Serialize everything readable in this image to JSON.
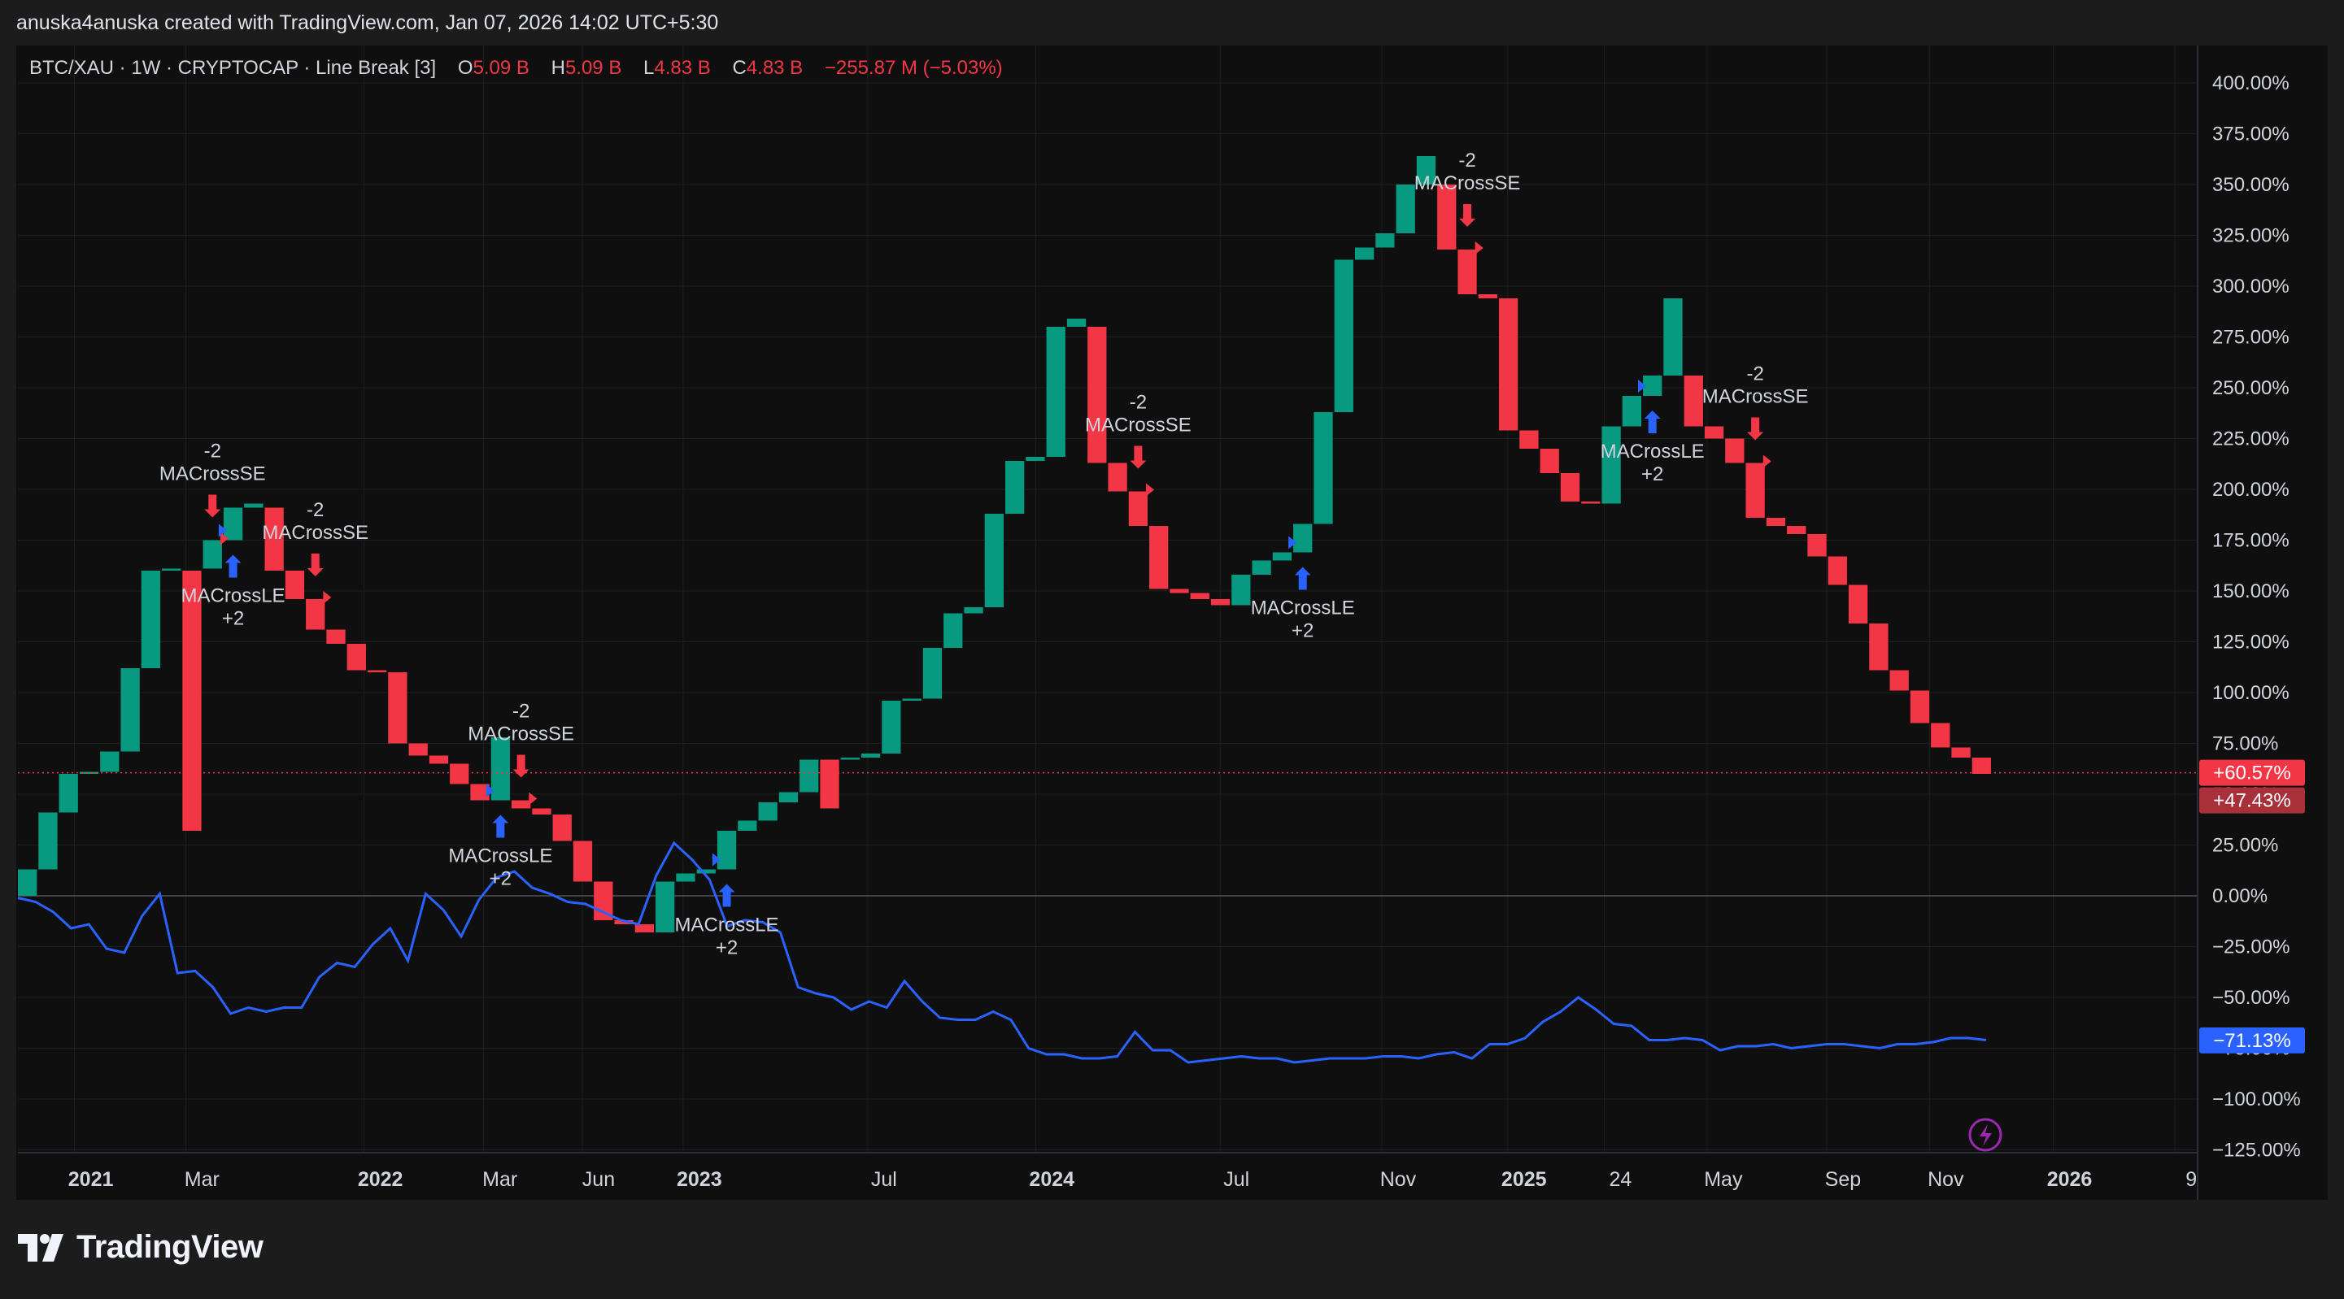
{
  "credit": "anuska4anuska created with TradingView.com, Jan 07, 2026 14:02 UTC+5:30",
  "legend": {
    "symbol": "BTC/XAU · 1W · CRYPTOCAP · Line Break [3]",
    "open_label": "O",
    "open": "5.09 B",
    "high_label": "H",
    "high": "5.09 B",
    "low_label": "L",
    "low": "4.83 B",
    "close_label": "C",
    "close": "4.83 B",
    "change": "−255.87 M (−5.03%)"
  },
  "brand": "TradingView",
  "colors": {
    "up": "#089981",
    "down": "#f23645",
    "compare_line": "#2962ff",
    "signal_long": "#2962ff",
    "signal_short": "#f23645",
    "background": "#0f0f0f",
    "grid": "#1e1e1e",
    "text": "#d1d4dc"
  },
  "price_badges": [
    {
      "text": "+60.57%",
      "value": 60.57,
      "color": "#f23645"
    },
    {
      "text": "+47.43%",
      "value": 47.43,
      "color": "#a8303b"
    },
    {
      "text": "−71.13%",
      "value": -71.13,
      "color": "#2962ff"
    }
  ],
  "chart_data": {
    "type": "line_break",
    "y_unit": "%",
    "ylim": [
      -125,
      400
    ],
    "y_ticks": [
      "400.00%",
      "375.00%",
      "350.00%",
      "325.00%",
      "300.00%",
      "275.00%",
      "250.00%",
      "225.00%",
      "200.00%",
      "175.00%",
      "150.00%",
      "125.00%",
      "100.00%",
      "75.00%",
      "50.00%",
      "25.00%",
      "0.00%",
      "−25.00%",
      "−50.00%",
      "−75.00%",
      "−100.00%",
      "−125.00%"
    ],
    "y_tick_values": [
      400,
      375,
      350,
      325,
      300,
      275,
      250,
      225,
      200,
      175,
      150,
      125,
      100,
      75,
      50,
      25,
      0,
      -25,
      -50,
      -75,
      -100,
      -125
    ],
    "x_ticks": [
      {
        "label": "2021",
        "bold": true,
        "t": 0.02
      },
      {
        "label": "Mar",
        "bold": false,
        "t": 0.073
      },
      {
        "label": "2022",
        "bold": true,
        "t": 0.158
      },
      {
        "label": "Mar",
        "bold": false,
        "t": 0.215
      },
      {
        "label": "Jun",
        "bold": false,
        "t": 0.262
      },
      {
        "label": "2023",
        "bold": true,
        "t": 0.31
      },
      {
        "label": "Jul",
        "bold": false,
        "t": 0.398
      },
      {
        "label": "2024",
        "bold": true,
        "t": 0.478
      },
      {
        "label": "Jul",
        "bold": false,
        "t": 0.566
      },
      {
        "label": "Nov",
        "bold": false,
        "t": 0.643
      },
      {
        "label": "2025",
        "bold": true,
        "t": 0.703
      },
      {
        "label": "24",
        "bold": false,
        "t": 0.749
      },
      {
        "label": "May",
        "bold": false,
        "t": 0.798
      },
      {
        "label": "Sep",
        "bold": false,
        "t": 0.855
      },
      {
        "label": "Nov",
        "bold": false,
        "t": 0.904
      },
      {
        "label": "2026",
        "bold": true,
        "t": 0.963
      },
      {
        "label": "9",
        "bold": false,
        "t": 1.021
      }
    ],
    "bricks": [
      {
        "o": 0,
        "c": 13,
        "up": true
      },
      {
        "o": 13,
        "c": 41,
        "up": true
      },
      {
        "o": 41,
        "c": 60,
        "up": true
      },
      {
        "o": 60,
        "c": 61,
        "up": true
      },
      {
        "o": 61,
        "c": 71,
        "up": true
      },
      {
        "o": 71,
        "c": 112,
        "up": true
      },
      {
        "o": 112,
        "c": 160,
        "up": true
      },
      {
        "o": 160,
        "c": 161,
        "up": true
      },
      {
        "o": 160,
        "c": 32,
        "up": false
      },
      {
        "o": 161,
        "c": 175,
        "up": true
      },
      {
        "o": 175,
        "c": 191,
        "up": true
      },
      {
        "o": 191,
        "c": 193,
        "up": true
      },
      {
        "o": 191,
        "c": 160,
        "up": false
      },
      {
        "o": 160,
        "c": 146,
        "up": false
      },
      {
        "o": 146,
        "c": 131,
        "up": false
      },
      {
        "o": 131,
        "c": 124,
        "up": false
      },
      {
        "o": 124,
        "c": 111,
        "up": false
      },
      {
        "o": 111,
        "c": 110,
        "up": false
      },
      {
        "o": 110,
        "c": 75,
        "up": false
      },
      {
        "o": 75,
        "c": 69,
        "up": false
      },
      {
        "o": 69,
        "c": 65,
        "up": false
      },
      {
        "o": 65,
        "c": 55,
        "up": false
      },
      {
        "o": 55,
        "c": 47,
        "up": false
      },
      {
        "o": 47,
        "c": 78,
        "up": true
      },
      {
        "o": 47,
        "c": 43,
        "up": false
      },
      {
        "o": 43,
        "c": 40,
        "up": false
      },
      {
        "o": 40,
        "c": 27,
        "up": false
      },
      {
        "o": 27,
        "c": 7,
        "up": false
      },
      {
        "o": 7,
        "c": -12,
        "up": false
      },
      {
        "o": -12,
        "c": -14,
        "up": false
      },
      {
        "o": -14,
        "c": -18,
        "up": false
      },
      {
        "o": -18,
        "c": 7,
        "up": true
      },
      {
        "o": 7,
        "c": 11,
        "up": true
      },
      {
        "o": 11,
        "c": 13,
        "up": true
      },
      {
        "o": 13,
        "c": 32,
        "up": true
      },
      {
        "o": 32,
        "c": 37,
        "up": true
      },
      {
        "o": 37,
        "c": 46,
        "up": true
      },
      {
        "o": 46,
        "c": 51,
        "up": true
      },
      {
        "o": 51,
        "c": 67,
        "up": true
      },
      {
        "o": 67,
        "c": 43,
        "up": false
      },
      {
        "o": 67,
        "c": 68,
        "up": true
      },
      {
        "o": 68,
        "c": 70,
        "up": true
      },
      {
        "o": 70,
        "c": 96,
        "up": true
      },
      {
        "o": 96,
        "c": 97,
        "up": true
      },
      {
        "o": 97,
        "c": 122,
        "up": true
      },
      {
        "o": 122,
        "c": 139,
        "up": true
      },
      {
        "o": 139,
        "c": 142,
        "up": true
      },
      {
        "o": 142,
        "c": 188,
        "up": true
      },
      {
        "o": 188,
        "c": 214,
        "up": true
      },
      {
        "o": 214,
        "c": 216,
        "up": true
      },
      {
        "o": 216,
        "c": 280,
        "up": true
      },
      {
        "o": 280,
        "c": 284,
        "up": true
      },
      {
        "o": 280,
        "c": 213,
        "up": false
      },
      {
        "o": 213,
        "c": 199,
        "up": false
      },
      {
        "o": 199,
        "c": 182,
        "up": false
      },
      {
        "o": 182,
        "c": 151,
        "up": false
      },
      {
        "o": 151,
        "c": 149,
        "up": false
      },
      {
        "o": 149,
        "c": 146,
        "up": false
      },
      {
        "o": 146,
        "c": 143,
        "up": false
      },
      {
        "o": 143,
        "c": 158,
        "up": true
      },
      {
        "o": 158,
        "c": 165,
        "up": true
      },
      {
        "o": 165,
        "c": 169,
        "up": true
      },
      {
        "o": 169,
        "c": 183,
        "up": true
      },
      {
        "o": 183,
        "c": 238,
        "up": true
      },
      {
        "o": 238,
        "c": 313,
        "up": true
      },
      {
        "o": 313,
        "c": 319,
        "up": true
      },
      {
        "o": 319,
        "c": 326,
        "up": true
      },
      {
        "o": 326,
        "c": 350,
        "up": true
      },
      {
        "o": 350,
        "c": 364,
        "up": true
      },
      {
        "o": 350,
        "c": 318,
        "up": false
      },
      {
        "o": 318,
        "c": 296,
        "up": false
      },
      {
        "o": 296,
        "c": 294,
        "up": false
      },
      {
        "o": 294,
        "c": 229,
        "up": false
      },
      {
        "o": 229,
        "c": 220,
        "up": false
      },
      {
        "o": 220,
        "c": 208,
        "up": false
      },
      {
        "o": 208,
        "c": 194,
        "up": false
      },
      {
        "o": 194,
        "c": 193,
        "up": false
      },
      {
        "o": 193,
        "c": 231,
        "up": true
      },
      {
        "o": 231,
        "c": 246,
        "up": true
      },
      {
        "o": 246,
        "c": 256,
        "up": true
      },
      {
        "o": 256,
        "c": 294,
        "up": true
      },
      {
        "o": 256,
        "c": 231,
        "up": false
      },
      {
        "o": 231,
        "c": 225,
        "up": false
      },
      {
        "o": 225,
        "c": 213,
        "up": false
      },
      {
        "o": 213,
        "c": 186,
        "up": false
      },
      {
        "o": 186,
        "c": 182,
        "up": false
      },
      {
        "o": 182,
        "c": 178,
        "up": false
      },
      {
        "o": 178,
        "c": 167,
        "up": false
      },
      {
        "o": 167,
        "c": 153,
        "up": false
      },
      {
        "o": 153,
        "c": 134,
        "up": false
      },
      {
        "o": 134,
        "c": 111,
        "up": false
      },
      {
        "o": 111,
        "c": 101,
        "up": false
      },
      {
        "o": 101,
        "c": 85,
        "up": false
      },
      {
        "o": 85,
        "c": 73,
        "up": false
      },
      {
        "o": 73,
        "c": 68,
        "up": false
      },
      {
        "o": 68,
        "c": 60,
        "up": false
      }
    ],
    "compare_series": {
      "color": "#2962ff",
      "values": [
        -1,
        -3,
        -8,
        -16,
        -14,
        -26,
        -28,
        -10,
        1,
        -38,
        -37,
        -45,
        -58,
        -55,
        -57,
        -55,
        -55,
        -40,
        -33,
        -35,
        -24,
        -16,
        -32,
        1,
        -7,
        -20,
        -2,
        9,
        12,
        4,
        1,
        -3,
        -4,
        -8,
        -12,
        -14,
        10,
        26,
        18,
        8,
        -15,
        -12,
        -13,
        -18,
        -45,
        -48,
        -50,
        -56,
        -52,
        -55,
        -42,
        -52,
        -60,
        -61,
        -61,
        -57,
        -61,
        -75,
        -78,
        -78,
        -80,
        -80,
        -79,
        -67,
        -76,
        -76,
        -82,
        -81,
        -80,
        -79,
        -80,
        -80,
        -82,
        -81,
        -80,
        -80,
        -80,
        -79,
        -79,
        -80,
        -78,
        -77,
        -80,
        -73,
        -73,
        -70,
        -62,
        -57,
        -50,
        -56,
        -63,
        -64,
        -71,
        -71,
        -70,
        -71,
        -76,
        -74,
        -74,
        -73,
        -75,
        -74,
        -73,
        -73,
        -74,
        -75,
        -73,
        -73,
        -72,
        -70,
        -70,
        -71
      ]
    },
    "signals": [
      {
        "type": "short",
        "brick": 9,
        "label": "MACrossSE",
        "qty": "-2"
      },
      {
        "type": "long",
        "brick": 10,
        "label": "MACrossLE",
        "qty": "+2"
      },
      {
        "type": "short",
        "brick": 14,
        "label": "MACrossSE",
        "qty": "-2"
      },
      {
        "type": "short",
        "brick": 24,
        "label": "MACrossSE",
        "qty": "-2"
      },
      {
        "type": "long",
        "brick": 23,
        "label": "MACrossLE",
        "qty": "+2"
      },
      {
        "type": "long",
        "brick": 34,
        "label": "MACrossLE",
        "qty": "+2"
      },
      {
        "type": "short",
        "brick": 54,
        "label": "MACrossSE",
        "qty": "-2"
      },
      {
        "type": "long",
        "brick": 62,
        "label": "MACrossLE",
        "qty": "+2"
      },
      {
        "type": "short",
        "brick": 70,
        "label": "MACrossSE",
        "qty": "-2"
      },
      {
        "type": "long",
        "brick": 79,
        "label": "MACrossLE",
        "qty": "+2"
      },
      {
        "type": "short",
        "brick": 84,
        "label": "MACrossSE",
        "qty": "-2"
      }
    ]
  }
}
